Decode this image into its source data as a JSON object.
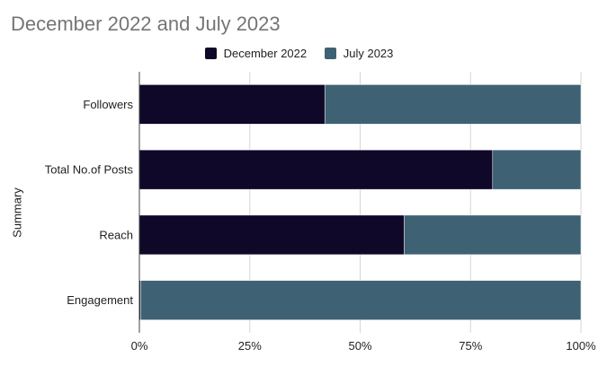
{
  "chart_data": {
    "type": "bar",
    "orientation": "horizontal",
    "stacked": "percent",
    "title": "December 2022 and July 2023",
    "xlabel": "",
    "ylabel": "Summary",
    "categories": [
      "Followers",
      "Total No.of Posts",
      "Reach",
      "Engagement"
    ],
    "series": [
      {
        "name": "December 2022",
        "values": [
          42,
          80,
          60,
          0.3
        ],
        "color": "#100828"
      },
      {
        "name": "July 2023",
        "values": [
          58,
          20,
          40,
          99.7
        ],
        "color": "#3e6273"
      }
    ],
    "xlim": [
      0,
      100
    ],
    "xticks": [
      "0%",
      "25%",
      "50%",
      "75%",
      "100%"
    ],
    "grid": true,
    "legend_position": "top"
  }
}
